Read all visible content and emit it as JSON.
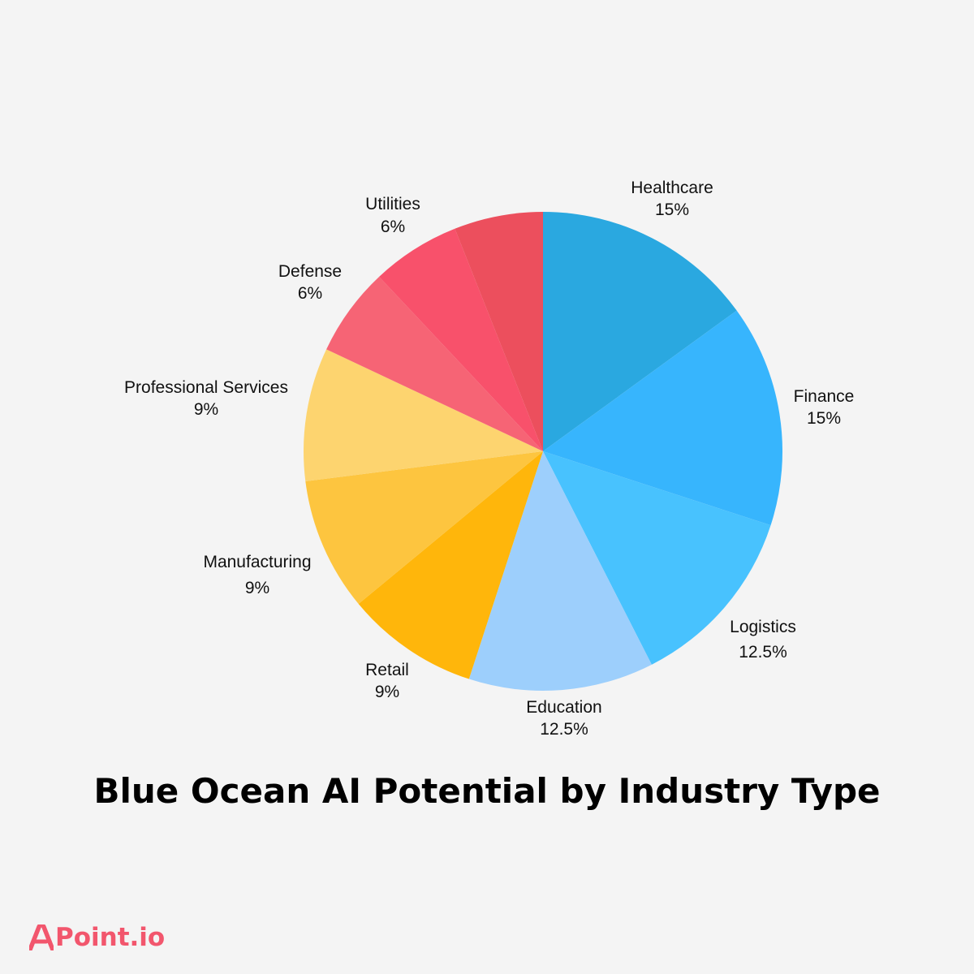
{
  "chart_data": {
    "type": "pie",
    "title": "Blue Ocean AI Potential by Industry Type",
    "slices": [
      {
        "label": "Healthcare",
        "value": 15,
        "value_label": "15%",
        "color": "#2aa8e0"
      },
      {
        "label": "Finance",
        "value": 15,
        "value_label": "15%",
        "color": "#37b5fd"
      },
      {
        "label": "Logistics",
        "value": 12.5,
        "value_label": "12.5%",
        "color": "#48c2fe"
      },
      {
        "label": "Education",
        "value": 12.5,
        "value_label": "12.5%",
        "color": "#9dcffc"
      },
      {
        "label": "Retail",
        "value": 9,
        "value_label": "9%",
        "color": "#ffb60b"
      },
      {
        "label": "Manufacturing",
        "value": 9,
        "value_label": "9%",
        "color": "#fdc53f"
      },
      {
        "label": "Professional Services",
        "value": 9,
        "value_label": "9%",
        "color": "#fdd46f"
      },
      {
        "label": "Defense",
        "value": 6,
        "value_label": "6%",
        "color": "#f66475"
      },
      {
        "label": "Utilities",
        "value": 6,
        "value_label": "6%",
        "color": "#f8516b"
      },
      {
        "label": "",
        "value": 6,
        "value_label": "",
        "color": "#ec4f5d"
      }
    ],
    "start_angle": "12 o'clock",
    "direction": "clockwise"
  },
  "brand": {
    "name": "Point.io",
    "color": "#f2566d"
  }
}
